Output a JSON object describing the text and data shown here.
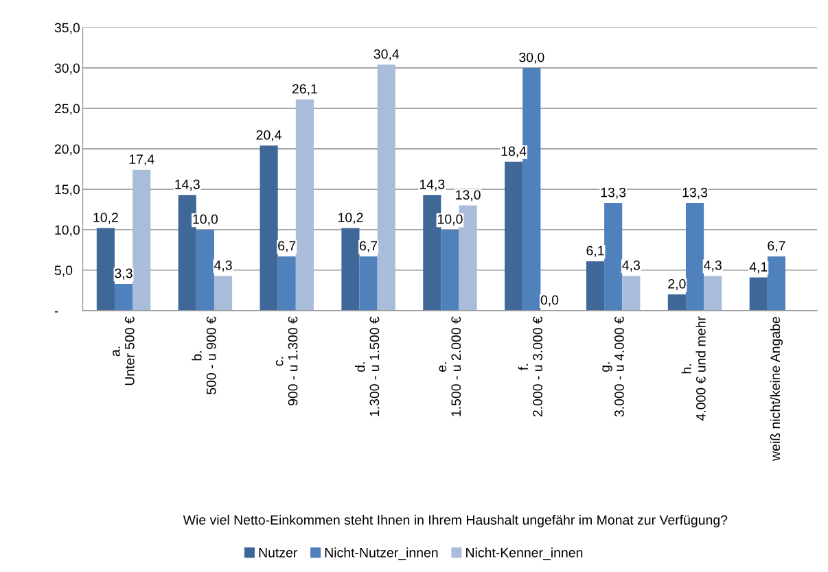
{
  "chart_data": {
    "type": "bar",
    "xlabel": "Wie viel Netto-Einkommen steht Ihnen in Ihrem Haushalt ungefähr im Monat zur Verfügung?",
    "categories": [
      "a.\nUnter 500 €",
      "b.\n500 - u 900 €",
      "c.\n900 - u 1.300 €",
      "d.\n1.300 - u 1.500 €",
      "e.\n1.500 - u 2.000 €",
      "f.\n2.000 - u 3.000 €",
      "g.\n3.000 - u 4.000 €",
      "h.\n4.000 € und mehr",
      "weiß nicht/keine Angabe"
    ],
    "series": [
      {
        "name": "Nutzer",
        "color": "#3f6797",
        "values": [
          10.2,
          14.3,
          20.4,
          10.2,
          14.3,
          18.4,
          6.1,
          2.0,
          4.1
        ],
        "value_labels": [
          "10,2",
          "14,3",
          "20,4",
          "10,2",
          "14,3",
          "18,4",
          "6,1",
          "2,0",
          "4,1"
        ]
      },
      {
        "name": "Nicht-Nutzer_innen",
        "color": "#4f81bd",
        "values": [
          3.3,
          10.0,
          6.7,
          6.7,
          10.0,
          30.0,
          13.3,
          13.3,
          6.7
        ],
        "value_labels": [
          "3,3",
          "10,0",
          "6,7",
          "6,7",
          "10,0",
          "30,0",
          "13,3",
          "13,3",
          "6,7"
        ]
      },
      {
        "name": "Nicht-Kenner_innen",
        "color": "#a9bcd9",
        "values": [
          17.4,
          4.3,
          26.1,
          30.4,
          13.0,
          0.0,
          4.3,
          4.3,
          null
        ],
        "value_labels": [
          "17,4",
          "4,3",
          "26,1",
          "30,4",
          "13,0",
          "0,0",
          "4,3",
          "4,3",
          null
        ]
      }
    ],
    "ylim": [
      0,
      35
    ],
    "yticks": [
      {
        "value": 0,
        "label": "-"
      },
      {
        "value": 5,
        "label": "5,0"
      },
      {
        "value": 10,
        "label": "10,0"
      },
      {
        "value": 15,
        "label": "15,0"
      },
      {
        "value": 20,
        "label": "20,0"
      },
      {
        "value": 25,
        "label": "25,0"
      },
      {
        "value": 30,
        "label": "30,0"
      },
      {
        "value": 35,
        "label": "35,0"
      }
    ],
    "grid": "y",
    "legend": "bottom"
  }
}
